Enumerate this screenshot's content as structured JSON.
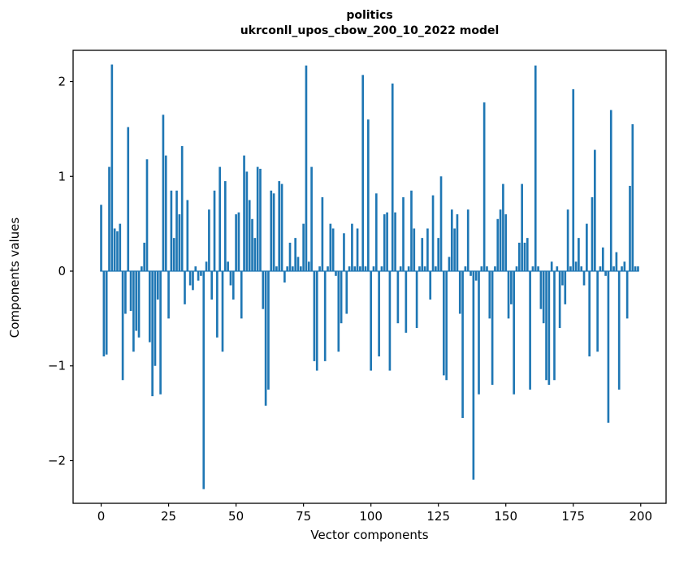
{
  "figure": {
    "title_line1": "politics",
    "title_line2": "ukrconll_upos_cbow_200_10_2022 model"
  },
  "chart_data": {
    "type": "bar",
    "title": "politics",
    "subtitle": "ukrconll_upos_cbow_200_10_2022 model",
    "xlabel": "Vector components",
    "ylabel": "Components values",
    "bar_color": "#1f77b4",
    "axes_edge_color": "#000000",
    "xlim": [
      -10.4,
      209.4
    ],
    "ylim": [
      -2.45,
      2.33
    ],
    "xticks": [
      0,
      25,
      50,
      75,
      100,
      125,
      150,
      175,
      200
    ],
    "yticks": [
      -2,
      -1,
      0,
      1,
      2
    ],
    "x_start": 0,
    "bar_width": 0.8,
    "values": [
      0.7,
      -0.9,
      -0.88,
      1.1,
      2.18,
      0.45,
      0.42,
      0.5,
      -1.15,
      -0.45,
      1.52,
      -0.42,
      -0.85,
      -0.63,
      -0.7,
      0.05,
      0.3,
      1.18,
      -0.75,
      -1.32,
      -1.0,
      -0.3,
      -1.3,
      1.65,
      1.22,
      -0.5,
      0.85,
      0.35,
      0.85,
      0.6,
      1.32,
      -0.35,
      0.75,
      -0.15,
      -0.2,
      0.05,
      -0.1,
      -0.05,
      -2.3,
      0.1,
      0.65,
      -0.3,
      0.85,
      -0.7,
      1.1,
      -0.85,
      0.95,
      0.1,
      -0.15,
      -0.3,
      0.6,
      0.62,
      -0.5,
      1.22,
      1.05,
      0.75,
      0.55,
      0.35,
      1.1,
      1.08,
      -0.4,
      -1.42,
      -1.25,
      0.85,
      0.82,
      0.05,
      0.95,
      0.92,
      -0.12,
      0.05,
      0.3,
      0.05,
      0.35,
      0.15,
      0.05,
      0.5,
      2.17,
      0.1,
      1.1,
      -0.95,
      -1.05,
      0.05,
      0.78,
      -0.95,
      0.05,
      0.5,
      0.45,
      -0.05,
      -0.85,
      -0.55,
      0.4,
      -0.45,
      0.05,
      0.5,
      0.05,
      0.45,
      0.05,
      2.07,
      0.05,
      1.6,
      -1.05,
      0.05,
      0.82,
      -0.9,
      0.05,
      0.6,
      0.62,
      -1.05,
      1.98,
      0.62,
      -0.55,
      0.05,
      0.78,
      -0.65,
      0.05,
      0.85,
      0.45,
      -0.6,
      0.05,
      0.35,
      0.05,
      0.45,
      -0.3,
      0.8,
      0.05,
      0.35,
      1.0,
      -1.1,
      -1.15,
      0.15,
      0.65,
      0.45,
      0.6,
      -0.45,
      -1.55,
      0.05,
      0.65,
      -0.05,
      -2.2,
      -0.1,
      -1.3,
      0.05,
      1.78,
      0.05,
      -0.5,
      -1.2,
      0.05,
      0.55,
      0.65,
      0.92,
      0.6,
      -0.5,
      -0.35,
      -1.3,
      0.05,
      0.3,
      0.92,
      0.3,
      0.35,
      -1.25,
      0.05,
      2.17,
      0.05,
      -0.4,
      -0.55,
      -1.15,
      -1.2,
      0.1,
      -1.15,
      0.05,
      -0.6,
      -0.15,
      -0.35,
      0.65,
      0.05,
      1.92,
      0.1,
      0.35,
      0.05,
      -0.15,
      0.5,
      -0.9,
      0.78,
      1.28,
      -0.85,
      0.05,
      0.25,
      -0.05,
      -1.6,
      1.7,
      0.05,
      0.2,
      -1.25,
      0.05,
      0.1,
      -0.5,
      0.9,
      1.55,
      0.05,
      0.05
    ]
  }
}
